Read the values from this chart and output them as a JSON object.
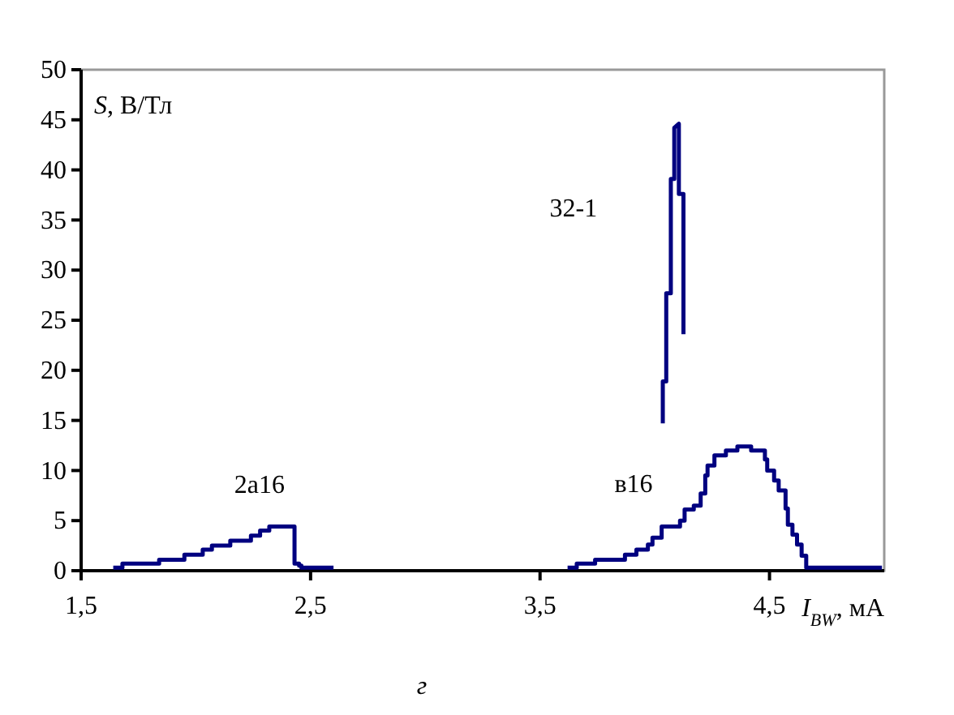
{
  "chart_data": {
    "type": "step",
    "xlabel": "I$_{BW}$, мА",
    "ylabel": "S, В/Тл",
    "annotations": [
      "г"
    ],
    "xlim": [
      1.5,
      5
    ],
    "ylim": [
      0,
      50
    ],
    "xticks": [
      {
        "value": 1.5,
        "label": "1,5"
      },
      {
        "value": 2.5,
        "label": "2,5"
      },
      {
        "value": 3.5,
        "label": "3,5"
      },
      {
        "value": 4.5,
        "label": "4,5"
      }
    ],
    "yticks": [
      0,
      5,
      10,
      15,
      20,
      25,
      30,
      35,
      40,
      45,
      50
    ],
    "grid": false,
    "legend": false,
    "line_style": "solid",
    "marker": "none",
    "series": [
      {
        "name": "2а16",
        "color": "#000080",
        "x": [
          1.64,
          1.68,
          1.84,
          1.95,
          2.03,
          2.07,
          2.15,
          2.24,
          2.28,
          2.32,
          2.43,
          2.45,
          2.46,
          2.6
        ],
        "values": [
          0.3,
          0.7,
          1.1,
          1.6,
          2.1,
          2.5,
          3.0,
          3.5,
          4.0,
          4.4,
          0.7,
          0.5,
          0.3,
          0.3
        ]
      },
      {
        "name": "в16",
        "color": "#000080",
        "x": [
          3.62,
          3.66,
          3.74,
          3.87,
          3.92,
          3.97,
          3.99,
          4.03,
          4.11,
          4.13,
          4.17,
          4.2,
          4.22,
          4.23,
          4.26,
          4.31,
          4.36,
          4.42,
          4.48,
          4.49,
          4.52,
          4.54,
          4.57,
          4.58,
          4.6,
          4.62,
          4.64,
          4.66,
          4.99
        ],
        "values": [
          0.3,
          0.7,
          1.1,
          1.6,
          2.1,
          2.6,
          3.3,
          4.4,
          5.0,
          6.1,
          6.5,
          7.7,
          9.5,
          10.5,
          11.5,
          12.0,
          12.4,
          12.0,
          11.1,
          10.0,
          9.0,
          8.0,
          6.2,
          4.6,
          3.6,
          2.6,
          1.5,
          0.3,
          0.3
        ]
      },
      {
        "name": "32-1",
        "type": "line",
        "color": "#000080",
        "x": [
          4.035,
          4.035,
          4.05,
          4.05,
          4.07,
          4.07,
          4.085,
          4.085,
          4.105,
          4.105,
          4.125,
          4.125
        ],
        "values": [
          14.7,
          18.9,
          18.9,
          27.7,
          27.7,
          39.1,
          39.1,
          44.2,
          44.6,
          37.6,
          37.6,
          23.6
        ]
      }
    ]
  }
}
